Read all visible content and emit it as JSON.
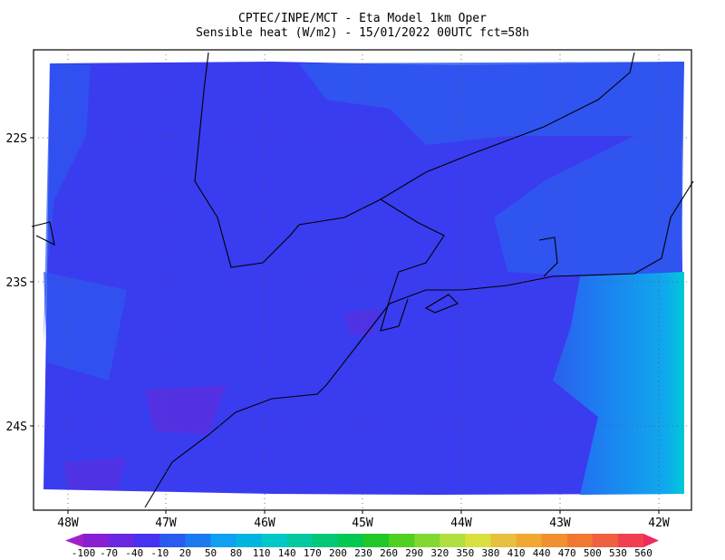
{
  "header": {
    "line1": "CPTEC/INPE/MCT -  Eta Model 1km Oper",
    "line2": "Sensible heat (W/m2) - 15/01/2022 00UTC fct=58h"
  },
  "map": {
    "lat_labels": [
      "22S",
      "23S",
      "24S"
    ],
    "lon_labels": [
      "48W",
      "47W",
      "46W",
      "45W",
      "44W",
      "43W",
      "42W"
    ]
  },
  "colorbar": {
    "labels": [
      -100,
      -70,
      -40,
      -10,
      20,
      50,
      80,
      110,
      140,
      170,
      200,
      230,
      260,
      290,
      320,
      350,
      380,
      410,
      440,
      470,
      500,
      530,
      560
    ],
    "colors": [
      "#a020c8",
      "#8a1ed2",
      "#6a28e0",
      "#4632f0",
      "#2a5af0",
      "#1e78f0",
      "#10a0f0",
      "#00b4e0",
      "#00c8c8",
      "#00c8a0",
      "#00c878",
      "#00c850",
      "#20c828",
      "#50d020",
      "#80d830",
      "#b0e040",
      "#d8e040",
      "#e8c040",
      "#f0a830",
      "#f09030",
      "#f07830",
      "#f06040",
      "#f04050",
      "#f02860"
    ]
  }
}
